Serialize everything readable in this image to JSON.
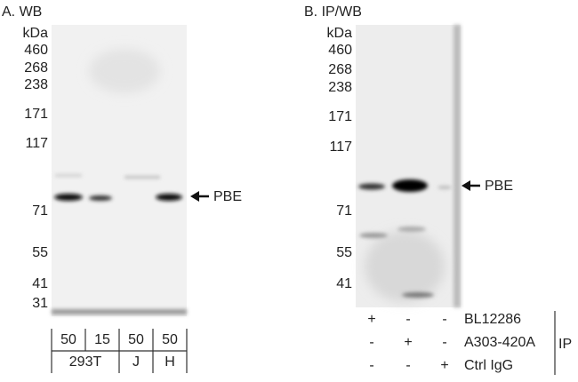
{
  "panel_a": {
    "title": "A. WB",
    "unit": "kDa",
    "markers": [
      460,
      268,
      238,
      171,
      117,
      71,
      55,
      41,
      31
    ],
    "target": "PBE",
    "loads": [
      50,
      15,
      50,
      50
    ],
    "cell_lines": [
      "293T",
      "J",
      "H"
    ]
  },
  "panel_b": {
    "title": "B. IP/WB",
    "unit": "kDa",
    "markers": [
      460,
      268,
      238,
      171,
      117,
      71,
      55,
      41
    ],
    "target": "PBE",
    "rows": [
      {
        "signs": [
          "+",
          "-",
          "-"
        ],
        "label": "BL12286"
      },
      {
        "signs": [
          "-",
          "+",
          "-"
        ],
        "label": "A303-420A"
      },
      {
        "signs": [
          "-",
          "-",
          "+"
        ],
        "label": "Ctrl IgG"
      }
    ],
    "group_label": "IP"
  }
}
